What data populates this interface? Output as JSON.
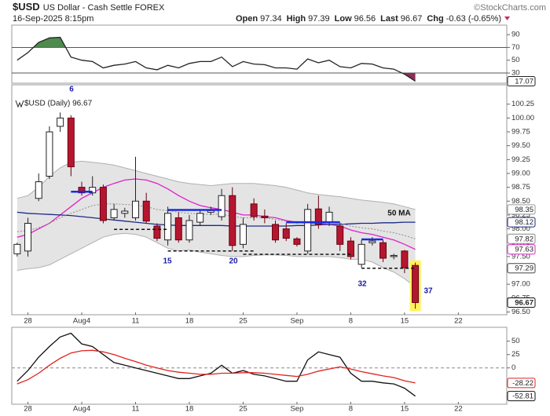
{
  "header": {
    "symbol": "$USD",
    "name": "US Dollar - Cash Settle FOREX",
    "source": "©StockCharts.com",
    "date": "16-Sep-2025 8:15pm",
    "quote": [
      {
        "label": "Open",
        "value": 97.34
      },
      {
        "label": "High",
        "value": 97.39
      },
      {
        "label": "Low",
        "value": 96.56
      },
      {
        "label": "Last",
        "value": 96.67
      },
      {
        "label": "Chg",
        "value": "-0.63 (-0.65%)"
      }
    ]
  },
  "chart_data": [
    {
      "type": "line",
      "color": "#222222",
      "ylim": [
        14,
        105
      ],
      "yticks": [
        30,
        50,
        70,
        90
      ],
      "reference_lines": [
        70,
        30
      ],
      "fill_above": {
        "level": 70,
        "color": "#4f8a4f"
      },
      "fill_below": {
        "level": 30,
        "color": "#8a2f55"
      },
      "values": [
        50,
        62,
        78,
        85,
        86,
        55,
        50,
        48,
        38,
        42,
        44,
        48,
        38,
        35,
        42,
        38,
        45,
        48,
        48,
        55,
        40,
        48,
        44,
        43,
        38,
        38,
        36,
        52,
        46,
        50,
        40,
        38,
        45,
        44,
        38,
        36,
        28,
        17.07
      ]
    },
    {
      "type": "candlestick",
      "legend": "$USD (Daily) 96.67",
      "x": [
        0,
        1,
        2,
        3,
        4,
        5,
        6,
        7,
        8,
        9,
        10,
        11,
        12,
        13,
        14,
        15,
        16,
        17,
        18,
        19,
        20,
        21,
        22,
        23,
        24,
        25,
        26,
        27,
        28,
        29,
        30,
        31,
        32,
        33,
        34,
        35,
        36,
        37
      ],
      "xlim": [
        -0.5,
        45.5
      ],
      "xticks": [
        {
          "value": 1,
          "label": "28"
        },
        {
          "value": 6,
          "label": "Aug4"
        },
        {
          "value": 11,
          "label": "11"
        },
        {
          "value": 16,
          "label": "18"
        },
        {
          "value": 21,
          "label": "25"
        },
        {
          "value": 26,
          "label": "Sep"
        },
        {
          "value": 31,
          "label": "8"
        },
        {
          "value": 36,
          "label": "15"
        },
        {
          "value": 41,
          "label": "22"
        }
      ],
      "ylim": [
        96.45,
        100.6
      ],
      "yticks": [
        {
          "value": 96.5,
          "label": "96.50"
        },
        96.75,
        {
          "value": 97,
          "label": "97.00"
        },
        97.25,
        {
          "value": 97.5,
          "label": "97.50"
        },
        97.75,
        {
          "value": 98,
          "label": "98.00"
        },
        98.25,
        {
          "value": 98.5,
          "label": "98.50"
        },
        98.75,
        {
          "value": 99,
          "label": "99.00"
        },
        99.25,
        {
          "value": 99.5,
          "label": "99.50"
        },
        99.75,
        {
          "value": 100,
          "label": "100.00"
        },
        100.25
      ],
      "open": [
        97.55,
        97.6,
        98.55,
        98.95,
        99.85,
        100.0,
        98.75,
        98.65,
        98.75,
        98.2,
        98.28,
        98.2,
        98.5,
        98.05,
        97.8,
        98.2,
        97.8,
        98.12,
        98.3,
        98.22,
        98.6,
        97.72,
        98.45,
        98.23,
        98.08,
        98.0,
        97.82,
        97.6,
        98.36,
        98.12,
        98.05,
        97.78,
        97.36,
        97.75,
        97.75,
        97.5,
        97.6,
        97.34
      ],
      "high": [
        97.75,
        98.2,
        99.0,
        99.85,
        100.1,
        100.05,
        98.85,
        98.95,
        98.8,
        98.45,
        98.38,
        99.3,
        98.65,
        98.1,
        98.4,
        98.3,
        98.25,
        98.35,
        98.4,
        98.72,
        98.75,
        98.2,
        98.55,
        98.35,
        98.15,
        98.1,
        97.85,
        98.45,
        98.6,
        98.4,
        98.1,
        97.85,
        97.8,
        97.85,
        97.8,
        97.55,
        97.62,
        97.39
      ],
      "low": [
        97.5,
        97.5,
        98.5,
        98.9,
        99.75,
        98.95,
        98.6,
        98.6,
        98.1,
        98.15,
        98.2,
        98.15,
        98.1,
        97.78,
        97.7,
        97.75,
        97.75,
        98.05,
        98.25,
        98.15,
        97.6,
        97.65,
        98.15,
        98.1,
        97.75,
        97.78,
        97.68,
        97.55,
        98.0,
        98.05,
        97.6,
        97.45,
        97.3,
        97.7,
        97.4,
        97.45,
        97.2,
        96.56
      ],
      "close": [
        97.72,
        98.1,
        98.85,
        99.75,
        100.0,
        99.12,
        98.65,
        98.75,
        98.15,
        98.35,
        98.32,
        98.5,
        98.14,
        97.83,
        98.28,
        97.8,
        98.15,
        98.28,
        98.33,
        98.6,
        97.7,
        98.08,
        98.22,
        98.2,
        97.8,
        97.83,
        97.72,
        98.35,
        98.08,
        98.3,
        97.72,
        97.5,
        97.72,
        97.78,
        97.47,
        97.52,
        97.3,
        96.67
      ],
      "up_color": "#ffffff",
      "down_color": "#b5162f",
      "bands": {
        "color": "#e4e4e4",
        "edge": "#b0b0b0",
        "upper": [
          98.55,
          98.6,
          98.75,
          98.95,
          99.1,
          99.2,
          99.22,
          99.2,
          99.18,
          99.15,
          99.1,
          99.05,
          99.0,
          98.95,
          98.9,
          98.85,
          98.82,
          98.8,
          98.78,
          98.8,
          98.82,
          98.82,
          98.82,
          98.8,
          98.78,
          98.75,
          98.7,
          98.65,
          98.62,
          98.6,
          98.58,
          98.55,
          98.52,
          98.5,
          98.48,
          98.45,
          98.4,
          98.35
        ],
        "lower": [
          97.25,
          97.28,
          97.3,
          97.35,
          97.45,
          97.55,
          97.65,
          97.75,
          97.85,
          97.9,
          97.92,
          97.9,
          97.85,
          97.75,
          97.65,
          97.6,
          97.62,
          97.58,
          97.55,
          97.52,
          97.5,
          97.5,
          97.52,
          97.53,
          97.53,
          97.52,
          97.5,
          97.5,
          97.5,
          97.5,
          97.48,
          97.45,
          97.45,
          97.4,
          97.3,
          97.22,
          97.1,
          96.95
        ]
      },
      "series": [
        {
          "color": "#e020c8",
          "values": [
            97.85,
            97.9,
            98.0,
            98.1,
            98.25,
            98.4,
            98.55,
            98.65,
            98.75,
            98.82,
            98.88,
            98.9,
            98.88,
            98.82,
            98.72,
            98.6,
            98.5,
            98.42,
            98.38,
            98.35,
            98.3,
            98.25,
            98.25,
            98.22,
            98.2,
            98.15,
            98.12,
            98.1,
            98.1,
            98.08,
            98.05,
            97.98,
            97.93,
            97.9,
            97.85,
            97.8,
            97.72,
            97.63
          ]
        },
        {
          "color": "#1c2a86",
          "values": [
            98.3,
            98.28,
            98.27,
            98.26,
            98.25,
            98.24,
            98.22,
            98.2,
            98.18,
            98.16,
            98.14,
            98.12,
            98.1,
            98.08,
            98.07,
            98.06,
            98.06,
            98.06,
            98.06,
            98.06,
            98.05,
            98.05,
            98.05,
            98.05,
            98.05,
            98.05,
            98.06,
            98.06,
            98.07,
            98.08,
            98.08,
            98.09,
            98.1,
            98.1,
            98.11,
            98.11,
            98.12,
            98.12
          ]
        },
        {
          "color": "#8c8c8c",
          "dashed": true,
          "values": [
            97.95,
            97.97,
            98.02,
            98.1,
            98.2,
            98.28,
            98.35,
            98.42,
            98.45,
            98.45,
            98.44,
            98.43,
            98.4,
            98.35,
            98.33,
            98.3,
            98.28,
            98.27,
            98.26,
            98.27,
            98.22,
            98.2,
            98.2,
            98.2,
            98.17,
            98.14,
            98.1,
            98.13,
            98.13,
            98.14,
            98.1,
            98.05,
            98.02,
            98.0,
            97.96,
            97.93,
            97.88,
            97.82
          ]
        }
      ],
      "support_lines": [
        {
          "x": [
            9,
            14
          ],
          "value": 97.99
        },
        {
          "x": [
            14,
            22
          ],
          "value": 97.6
        },
        {
          "x": [
            21,
            31
          ],
          "value": 97.54
        },
        {
          "x": [
            32,
            37
          ],
          "value": 97.29
        }
      ],
      "resistance_lines": [
        {
          "x": [
            5,
            7
          ],
          "value": 98.67
        },
        {
          "x": [
            14,
            19
          ],
          "value": 98.34
        },
        {
          "x": [
            25,
            30
          ],
          "value": 98.12
        },
        {
          "x": [
            32,
            34
          ],
          "value": 97.81
        }
      ],
      "annotations": [
        "6",
        "15",
        "20",
        "32",
        "37",
        "50 MA"
      ]
    },
    {
      "type": "line",
      "ylim": [
        -68,
        76
      ],
      "yticks": [
        50,
        25,
        0
      ],
      "reference_lines": [
        0
      ],
      "series": [
        {
          "color": "#111111",
          "values": [
            -25,
            -5,
            20,
            40,
            58,
            65,
            45,
            40,
            25,
            10,
            5,
            0,
            -5,
            -10,
            -15,
            -20,
            -20,
            -15,
            -10,
            5,
            -10,
            -5,
            -12,
            -15,
            -20,
            -25,
            -25,
            15,
            30,
            25,
            20,
            -10,
            -25,
            -25,
            -28,
            -30,
            -38,
            -52.81
          ]
        },
        {
          "color": "#e0231e",
          "values": [
            -30,
            -22,
            -10,
            5,
            18,
            28,
            32,
            33,
            30,
            25,
            18,
            12,
            5,
            0,
            -5,
            -8,
            -10,
            -12,
            -12,
            -10,
            -10,
            -9,
            -9,
            -10,
            -12,
            -14,
            -16,
            -12,
            -6,
            -2,
            2,
            -2,
            -7,
            -11,
            -15,
            -18,
            -24,
            -28.22
          ]
        }
      ]
    }
  ]
}
